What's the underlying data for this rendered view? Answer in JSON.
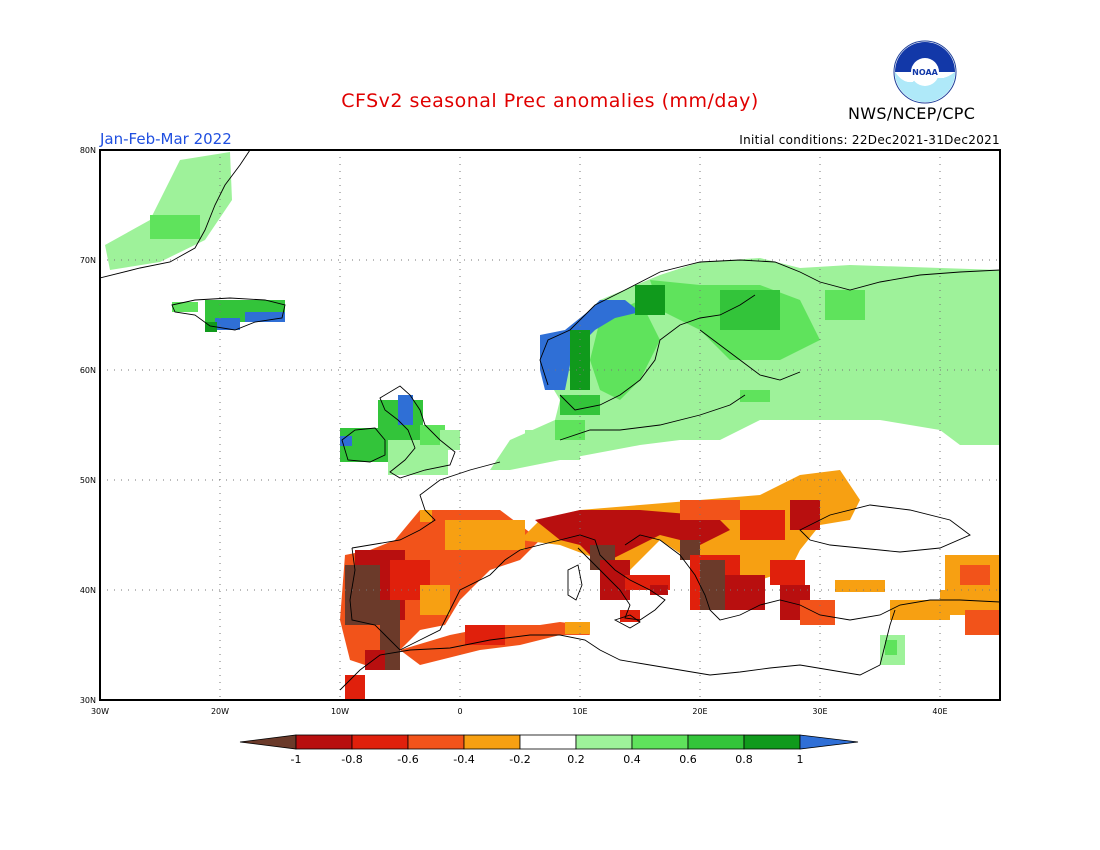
{
  "title": "CFSv2 seasonal Prec anomalies (mm/day)",
  "period": "Jan-Feb-Mar 2022",
  "initial_conditions": "Initial conditions: 22Dec2021-31Dec2021",
  "agency": "NWS/NCEP/CPC",
  "logo": {
    "name": "noaa-logo",
    "text": "NOAA"
  },
  "map": {
    "lon_range": [
      -30,
      45
    ],
    "lat_range": [
      30,
      80
    ],
    "grid": "dotted",
    "lon_ticks": [
      "30W",
      "20W",
      "10W",
      "0",
      "10E",
      "20E",
      "30E",
      "40E"
    ],
    "lat_ticks": [
      "30N",
      "40N",
      "50N",
      "60N",
      "70N",
      "80N"
    ]
  },
  "colorbar": {
    "labels": [
      "-1",
      "-0.8",
      "-0.6",
      "-0.4",
      "-0.2",
      "0.2",
      "0.4",
      "0.6",
      "0.8",
      "1"
    ],
    "colors": [
      "#6b3a2a",
      "#b80f0f",
      "#e0200c",
      "#f2531a",
      "#f7a012",
      "#ffffff",
      "#9ef29a",
      "#5fe35c",
      "#33c43a",
      "#109a1c",
      "#2f6fd6"
    ]
  },
  "anomaly_regions": [
    {
      "name": "iberia-dry",
      "color": "#e0200c"
    },
    {
      "name": "italy-balkans-dry",
      "color": "#b80f0f"
    },
    {
      "name": "scandinavia-wet",
      "color": "#5fe35c"
    },
    {
      "name": "norway-coast-very-wet",
      "color": "#2f6fd6"
    }
  ]
}
